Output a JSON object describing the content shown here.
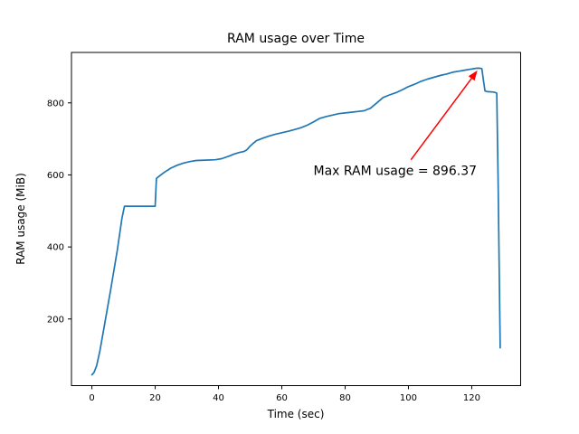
{
  "figure": {
    "background": "#ffffff"
  },
  "chart_data": {
    "type": "line",
    "title": "RAM usage over Time",
    "xlabel": "Time (sec)",
    "ylabel": "RAM usage (MiB)",
    "xlim": [
      -6.45,
      135.45
    ],
    "ylim": [
      15,
      940
    ],
    "xticks": [
      0,
      20,
      40,
      60,
      80,
      100,
      120
    ],
    "yticks": [
      200,
      400,
      600,
      800
    ],
    "grid": false,
    "legend": null,
    "line_color": "#1f77b4",
    "series": [
      {
        "name": "RAM usage",
        "color": "#1f77b4",
        "points": [
          [
            0,
            45
          ],
          [
            0.7,
            52
          ],
          [
            1.5,
            70
          ],
          [
            2.5,
            110
          ],
          [
            4,
            185
          ],
          [
            6,
            285
          ],
          [
            8,
            390
          ],
          [
            9.5,
            480
          ],
          [
            10.3,
            513
          ],
          [
            20,
            513
          ],
          [
            20.4,
            590
          ],
          [
            21.5,
            598
          ],
          [
            23,
            608
          ],
          [
            25,
            619
          ],
          [
            27,
            627
          ],
          [
            29,
            633
          ],
          [
            31,
            637
          ],
          [
            33,
            640
          ],
          [
            36,
            641
          ],
          [
            39,
            642
          ],
          [
            41,
            645
          ],
          [
            43,
            651
          ],
          [
            45,
            658
          ],
          [
            46.5,
            662
          ],
          [
            48,
            665
          ],
          [
            49,
            670
          ],
          [
            50,
            680
          ],
          [
            51,
            688
          ],
          [
            52,
            695
          ],
          [
            54,
            702
          ],
          [
            56,
            708
          ],
          [
            58,
            713
          ],
          [
            60,
            717
          ],
          [
            62,
            721
          ],
          [
            64,
            726
          ],
          [
            66,
            731
          ],
          [
            68,
            738
          ],
          [
            70,
            747
          ],
          [
            72,
            757
          ],
          [
            74,
            762
          ],
          [
            76,
            766
          ],
          [
            78,
            770
          ],
          [
            80,
            772
          ],
          [
            82,
            774
          ],
          [
            84,
            776
          ],
          [
            86,
            778
          ],
          [
            88,
            785
          ],
          [
            90,
            800
          ],
          [
            92,
            815
          ],
          [
            94,
            822
          ],
          [
            96,
            828
          ],
          [
            98,
            836
          ],
          [
            100,
            845
          ],
          [
            102,
            852
          ],
          [
            104,
            860
          ],
          [
            106,
            866
          ],
          [
            108,
            871
          ],
          [
            110,
            876
          ],
          [
            112,
            880
          ],
          [
            114,
            885
          ],
          [
            116,
            888
          ],
          [
            118,
            891
          ],
          [
            120,
            894
          ],
          [
            121.5,
            896
          ],
          [
            122.5,
            896.37
          ],
          [
            123.2,
            895
          ],
          [
            123.7,
            862
          ],
          [
            124.2,
            833
          ],
          [
            125,
            831
          ],
          [
            127,
            830
          ],
          [
            127.9,
            827
          ],
          [
            128.3,
            600
          ],
          [
            129,
            120
          ]
        ]
      }
    ],
    "annotation": {
      "text": "Max RAM usage = 896.37",
      "max_value": 896.37,
      "color": "#ff0000",
      "xy": [
        121.8,
        890
      ],
      "arrow_tail_xy": [
        100.8,
        642
      ],
      "text_xy": [
        70,
        600
      ]
    }
  }
}
